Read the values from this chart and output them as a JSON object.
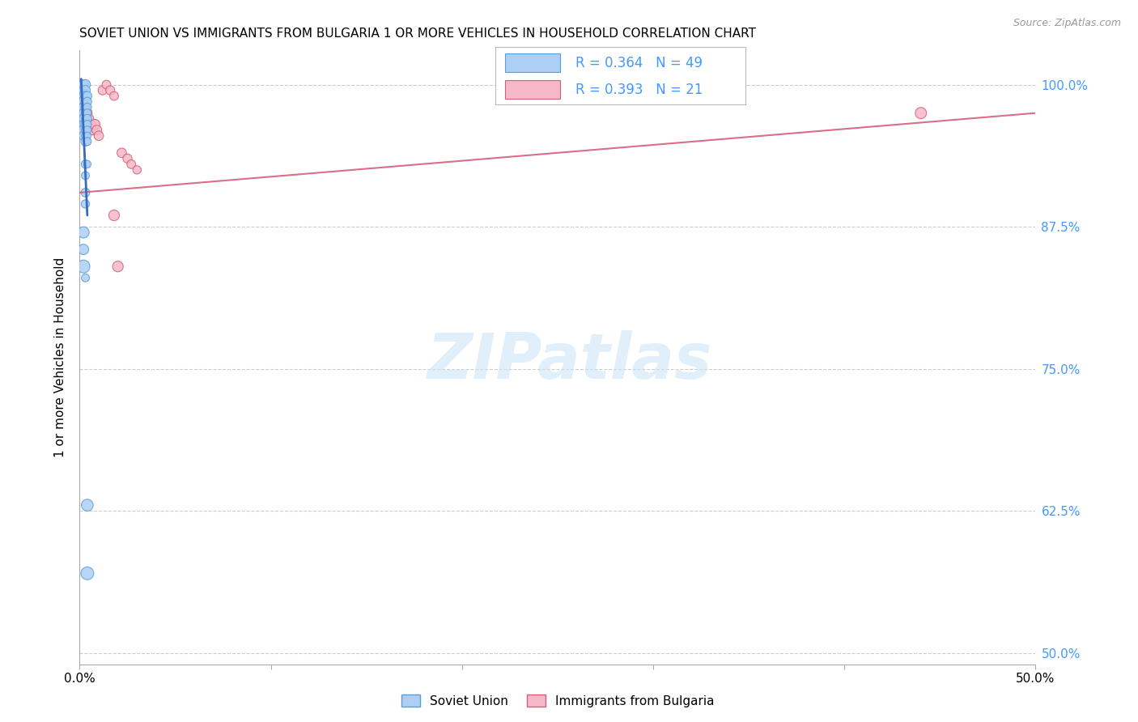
{
  "title": "SOVIET UNION VS IMMIGRANTS FROM BULGARIA 1 OR MORE VEHICLES IN HOUSEHOLD CORRELATION CHART",
  "source": "Source: ZipAtlas.com",
  "ylabel": "1 or more Vehicles in Household",
  "ytick_labels": [
    "100.0%",
    "87.5%",
    "75.0%",
    "62.5%",
    "50.0%"
  ],
  "ytick_values": [
    1.0,
    0.875,
    0.75,
    0.625,
    0.5
  ],
  "xmin": 0.0,
  "xmax": 0.5,
  "ymin": 0.49,
  "ymax": 1.03,
  "soviet_R": 0.364,
  "soviet_N": 49,
  "bulgaria_R": 0.393,
  "bulgaria_N": 21,
  "soviet_color": "#aecff5",
  "soviet_edge_color": "#5a9fd4",
  "soviet_line_color": "#3a6abf",
  "bulgaria_color": "#f5b8c8",
  "bulgaria_edge_color": "#d4607a",
  "bulgaria_line_color": "#d4607a",
  "legend_color": "#4499ff",
  "n_color": "#ff2222",
  "watermark_color": "#cce5f5",
  "soviet_x": [
    0.001,
    0.001,
    0.001,
    0.001,
    0.001,
    0.001,
    0.001,
    0.001,
    0.002,
    0.002,
    0.002,
    0.002,
    0.002,
    0.002,
    0.002,
    0.002,
    0.002,
    0.002,
    0.002,
    0.002,
    0.002,
    0.003,
    0.003,
    0.003,
    0.003,
    0.003,
    0.003,
    0.003,
    0.003,
    0.003,
    0.003,
    0.003,
    0.003,
    0.003,
    0.003,
    0.003,
    0.003,
    0.004,
    0.004,
    0.004,
    0.004,
    0.004,
    0.004,
    0.004,
    0.004,
    0.004,
    0.004,
    0.004,
    0.004
  ],
  "soviet_y": [
    1.0,
    0.995,
    0.99,
    0.985,
    0.98,
    0.975,
    0.97,
    0.965,
    1.0,
    0.995,
    0.99,
    0.985,
    0.98,
    0.975,
    0.97,
    0.965,
    0.96,
    0.955,
    0.87,
    0.855,
    0.84,
    1.0,
    0.995,
    0.99,
    0.985,
    0.98,
    0.975,
    0.97,
    0.965,
    0.96,
    0.955,
    0.95,
    0.93,
    0.92,
    0.905,
    0.895,
    0.83,
    0.99,
    0.985,
    0.98,
    0.975,
    0.97,
    0.965,
    0.96,
    0.955,
    0.95,
    0.93,
    0.63,
    0.57
  ],
  "soviet_sizes": [
    60,
    55,
    50,
    60,
    55,
    70,
    65,
    55,
    75,
    70,
    65,
    80,
    75,
    65,
    60,
    55,
    80,
    65,
    100,
    85,
    130,
    80,
    75,
    70,
    65,
    60,
    55,
    50,
    60,
    55,
    50,
    65,
    55,
    50,
    60,
    55,
    50,
    65,
    60,
    55,
    50,
    60,
    55,
    50,
    45,
    50,
    45,
    110,
    130
  ],
  "bulgaria_x": [
    0.001,
    0.002,
    0.003,
    0.004,
    0.005,
    0.006,
    0.007,
    0.008,
    0.009,
    0.01,
    0.012,
    0.014,
    0.016,
    0.018,
    0.02,
    0.022,
    0.025,
    0.027,
    0.03,
    0.018,
    0.44
  ],
  "bulgaria_y": [
    0.99,
    0.985,
    0.98,
    0.975,
    0.97,
    0.965,
    0.96,
    0.965,
    0.96,
    0.955,
    0.995,
    1.0,
    0.995,
    0.99,
    0.84,
    0.94,
    0.935,
    0.93,
    0.925,
    0.885,
    0.975
  ],
  "bulgaria_sizes": [
    70,
    65,
    70,
    75,
    65,
    70,
    75,
    80,
    75,
    70,
    65,
    60,
    65,
    60,
    90,
    70,
    65,
    60,
    55,
    90,
    100
  ],
  "soviet_trendline": [
    0.0008,
    1.005,
    0.004,
    0.885
  ],
  "bulgaria_trendline": [
    0.0,
    0.905,
    0.5,
    0.975
  ],
  "xtick_positions": [
    0.0,
    0.1,
    0.2,
    0.3,
    0.4,
    0.5
  ],
  "xtick_labels": [
    "0.0%",
    "",
    "",
    "",
    "",
    "50.0%"
  ]
}
